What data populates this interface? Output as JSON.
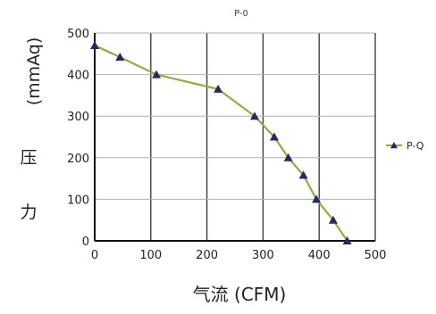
{
  "chart_data": {
    "type": "line",
    "title": "P-0",
    "xlabel": "气流 (CFM)",
    "ylabel_lines": [
      "(mmAq)",
      "压",
      "力"
    ],
    "xlim": [
      0,
      500
    ],
    "ylim": [
      0,
      500
    ],
    "xticks": [
      0,
      100,
      200,
      300,
      400,
      500
    ],
    "yticks": [
      0,
      100,
      200,
      300,
      400,
      500
    ],
    "grid": true,
    "legend_position": "right",
    "series": [
      {
        "name": "P-Q",
        "color": "#9aaa3a",
        "marker_color": "#1f2a6b",
        "marker": "triangle",
        "x": [
          0,
          45,
          110,
          220,
          285,
          320,
          345,
          372,
          395,
          425,
          450
        ],
        "y": [
          470,
          442,
          400,
          365,
          300,
          250,
          200,
          158,
          100,
          50,
          0
        ]
      }
    ]
  }
}
